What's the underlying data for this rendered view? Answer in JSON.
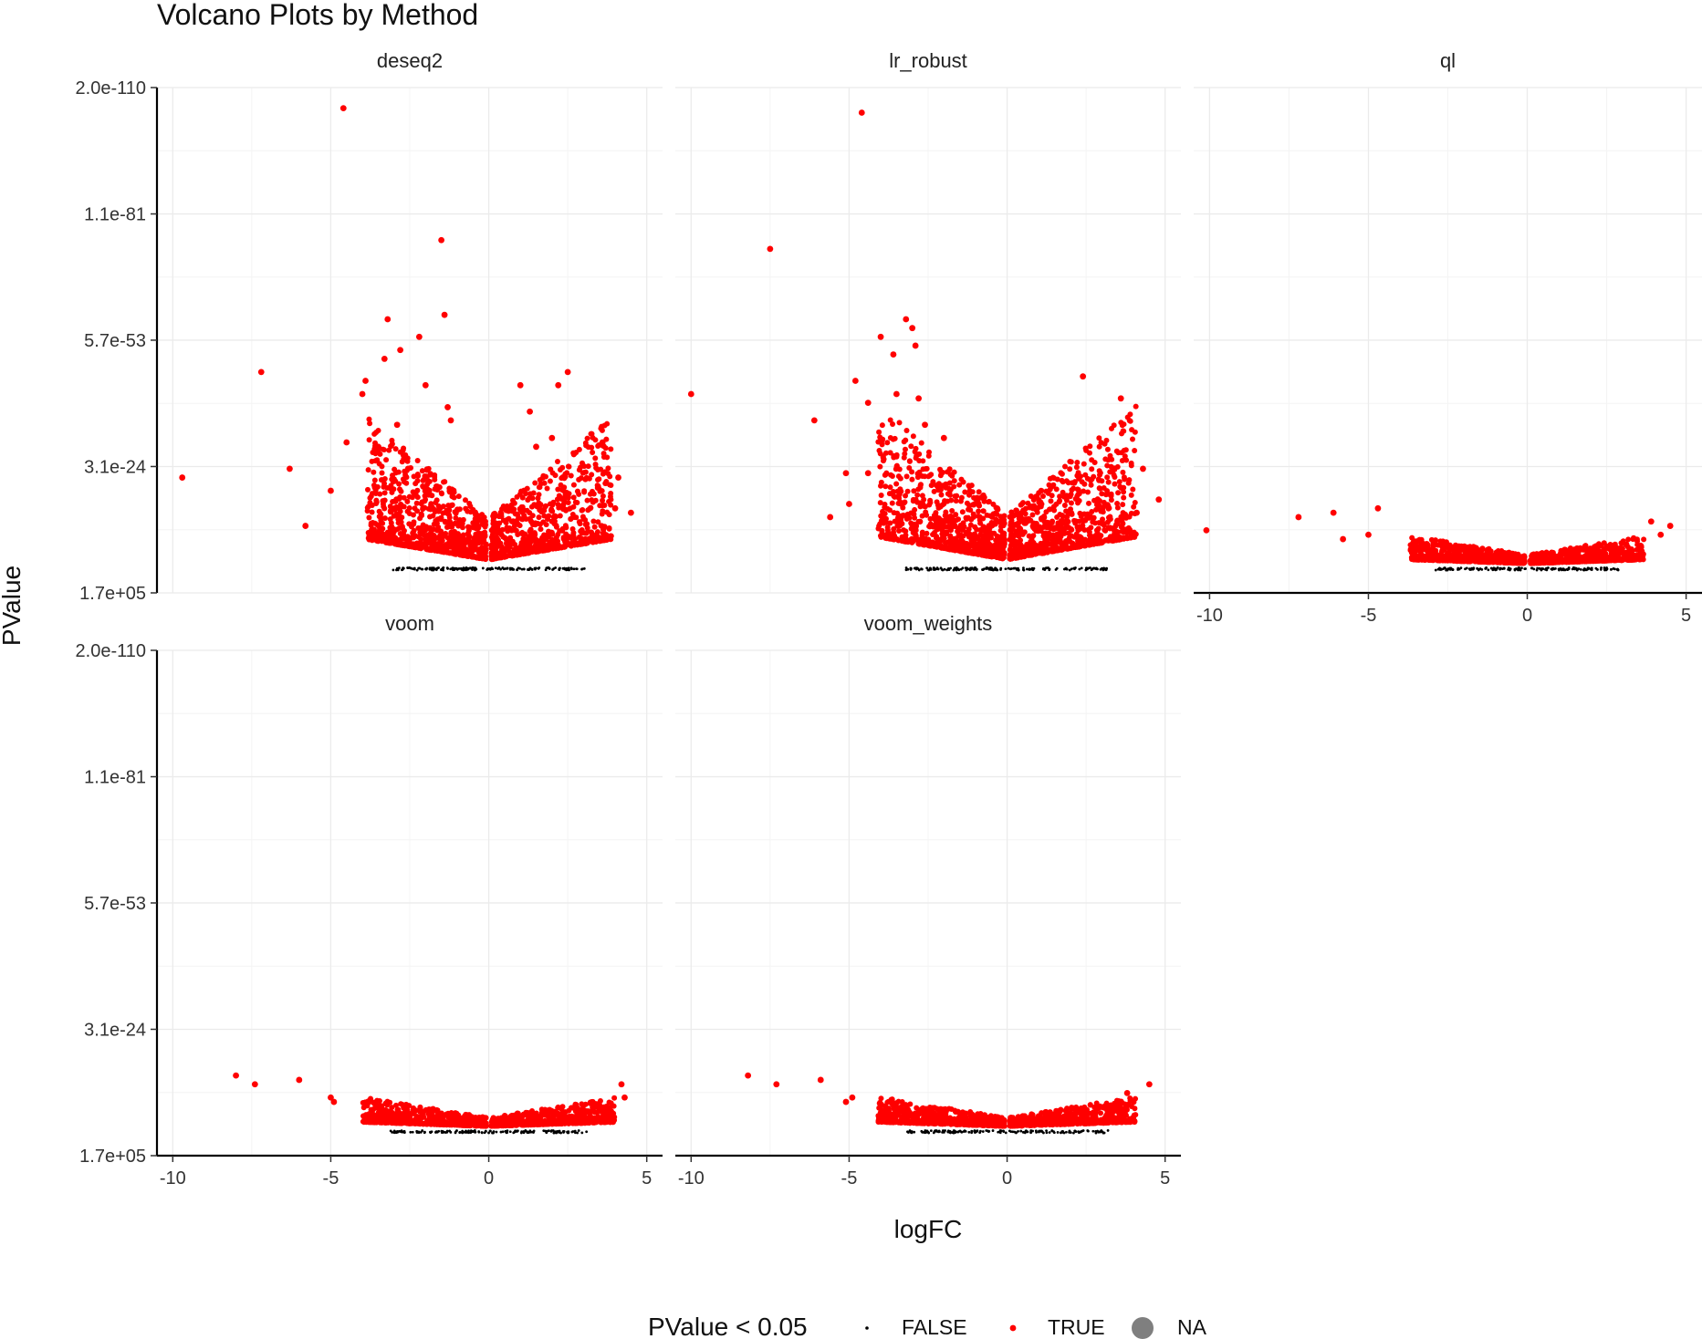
{
  "title": "Volcano Plots by Method",
  "colors": {
    "false": "#000000",
    "true": "#ff0000",
    "na": "#7f7f7f",
    "grid": "#ebebeb"
  },
  "legend": {
    "title": "PValue < 0.05",
    "items": [
      {
        "label": "FALSE",
        "color": "#000000",
        "shape": "small-dot"
      },
      {
        "label": "TRUE",
        "color": "#ff0000",
        "shape": "dot"
      },
      {
        "label": "NA",
        "color": "#7f7f7f",
        "shape": "large-dot"
      }
    ],
    "position": "bottom"
  },
  "chart_data": {
    "type": "scatter",
    "title": "Volcano Plots by Method",
    "xlabel": "logFC",
    "ylabel": "PValue",
    "xlim": [
      -10.5,
      5.5
    ],
    "x_ticks": [
      -10,
      -5,
      0,
      5
    ],
    "x_tick_labels": [
      "-10",
      "-5",
      "0",
      "5"
    ],
    "y_scale": "-log10 (reversed)",
    "y_ticks": [
      170000.0,
      3.1e-24,
      5.7e-53,
      1.1e-81,
      2e-110
    ],
    "y_tick_labels": [
      "1.7e+05",
      "3.1e-24",
      "5.7e-53",
      "1.1e-81",
      "2.0e-110"
    ],
    "ylim": [
      170000.0,
      2e-110
    ],
    "grid": true,
    "facets": [
      {
        "name": "deseq2",
        "background": [
          {
            "halfWidth": 3.8,
            "height": 0.95,
            "count": 1500
          }
        ],
        "outliers": [
          {
            "x": -4.6,
            "y": 1e-105
          },
          {
            "x": -1.5,
            "y": 1e-75
          },
          {
            "x": -1.4,
            "y": 1e-58
          },
          {
            "x": -3.2,
            "y": 1e-57
          },
          {
            "x": -2.2,
            "y": 1e-53
          },
          {
            "x": -7.2,
            "y": 1e-45
          },
          {
            "x": -2.8,
            "y": 1e-50
          },
          {
            "x": -3.3,
            "y": 1e-48
          },
          {
            "x": -3.9,
            "y": 1e-43
          },
          {
            "x": -4.0,
            "y": 1e-40
          },
          {
            "x": -2.0,
            "y": 1e-42
          },
          {
            "x": 2.5,
            "y": 1e-45
          },
          {
            "x": 2.2,
            "y": 1e-42
          },
          {
            "x": 1.0,
            "y": 1e-42
          },
          {
            "x": -1.3,
            "y": 1e-37
          },
          {
            "x": -4.5,
            "y": 1e-29
          },
          {
            "x": 3.6,
            "y": 1e-29
          },
          {
            "x": -9.7,
            "y": 1e-21
          },
          {
            "x": -6.3,
            "y": 1e-23
          },
          {
            "x": 4.1,
            "y": 1e-21
          },
          {
            "x": -5.0,
            "y": 1e-18
          },
          {
            "x": -5.8,
            "y": 1e-10
          },
          {
            "x": 4.5,
            "y": 1e-13
          },
          {
            "x": 4.0,
            "y": 1e-14
          },
          {
            "x": -1.2,
            "y": 1e-34
          },
          {
            "x": 1.3,
            "y": 1e-36
          },
          {
            "x": -2.9,
            "y": 1e-33
          },
          {
            "x": -3.5,
            "y": 1e-28
          },
          {
            "x": 2.0,
            "y": 1e-30
          },
          {
            "x": 1.5,
            "y": 1e-28
          }
        ]
      },
      {
        "name": "lr_robust",
        "background": [
          {
            "halfWidth": 4.0,
            "height": 1.0,
            "count": 1500
          }
        ],
        "outliers": [
          {
            "x": -4.6,
            "y": 1e-104
          },
          {
            "x": -7.5,
            "y": 1e-73
          },
          {
            "x": -3.2,
            "y": 1e-57
          },
          {
            "x": -3.0,
            "y": 1e-55
          },
          {
            "x": -4.0,
            "y": 1e-53
          },
          {
            "x": -2.9,
            "y": 1e-51
          },
          {
            "x": -3.6,
            "y": 1e-49
          },
          {
            "x": -10.0,
            "y": 1e-40
          },
          {
            "x": -4.8,
            "y": 1e-43
          },
          {
            "x": -3.5,
            "y": 1e-40
          },
          {
            "x": -4.4,
            "y": 1e-38
          },
          {
            "x": -2.8,
            "y": 1e-39
          },
          {
            "x": -6.1,
            "y": 1e-34
          },
          {
            "x": 2.4,
            "y": 1e-44
          },
          {
            "x": 3.6,
            "y": 1e-39
          },
          {
            "x": 4.3,
            "y": 1e-23
          },
          {
            "x": 4.8,
            "y": 1e-16
          },
          {
            "x": -5.6,
            "y": 1e-12
          },
          {
            "x": -5.0,
            "y": 1e-15
          },
          {
            "x": -4.4,
            "y": 1e-22
          },
          {
            "x": -5.1,
            "y": 1e-22
          },
          {
            "x": 4.1,
            "y": 1e-13
          },
          {
            "x": -2.6,
            "y": 1e-33
          },
          {
            "x": -2.0,
            "y": 1e-30
          }
        ]
      },
      {
        "name": "ql",
        "background": [
          {
            "halfWidth": 3.6,
            "height": 0.19,
            "count": 1200
          }
        ],
        "outliers": [
          {
            "x": -10.1,
            "y": 1e-09
          },
          {
            "x": -7.2,
            "y": 1e-12
          },
          {
            "x": -6.1,
            "y": 1e-13
          },
          {
            "x": -5.8,
            "y": 1e-07
          },
          {
            "x": -5.0,
            "y": 1e-08
          },
          {
            "x": -4.7,
            "y": 1e-14
          },
          {
            "x": 3.9,
            "y": 1e-11
          },
          {
            "x": 4.5,
            "y": 1e-10
          },
          {
            "x": 4.2,
            "y": 1e-08
          }
        ]
      },
      {
        "name": "voom",
        "background": [
          {
            "halfWidth": 3.9,
            "height": 0.19,
            "count": 1200
          }
        ],
        "outliers": [
          {
            "x": -8.0,
            "y": 1e-13
          },
          {
            "x": -7.4,
            "y": 1e-11
          },
          {
            "x": -6.0,
            "y": 1e-12
          },
          {
            "x": -5.0,
            "y": 1e-08
          },
          {
            "x": -4.9,
            "y": 1e-07
          },
          {
            "x": 4.2,
            "y": 1e-11
          },
          {
            "x": 4.3,
            "y": 1e-08
          }
        ]
      },
      {
        "name": "voom_weights",
        "background": [
          {
            "halfWidth": 4.0,
            "height": 0.19,
            "count": 1200
          }
        ],
        "outliers": [
          {
            "x": -8.2,
            "y": 1e-13
          },
          {
            "x": -7.3,
            "y": 1e-11
          },
          {
            "x": -5.9,
            "y": 1e-12
          },
          {
            "x": -4.9,
            "y": 1e-08
          },
          {
            "x": -5.1,
            "y": 1e-07
          },
          {
            "x": 4.5,
            "y": 1e-11
          },
          {
            "x": 4.0,
            "y": 1e-07
          },
          {
            "x": 3.8,
            "y": 1e-09
          }
        ]
      }
    ]
  }
}
